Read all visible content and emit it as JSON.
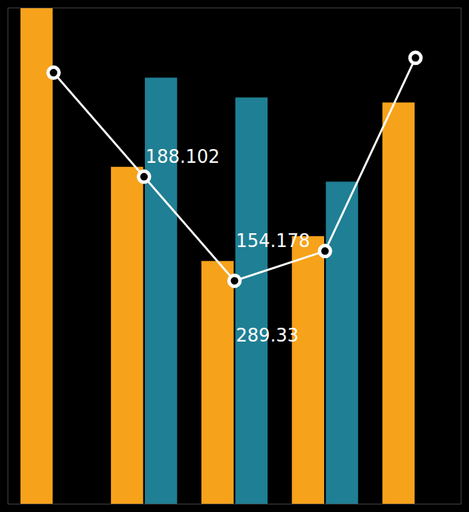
{
  "chart_data": {
    "type": "bar",
    "categories": [
      null,
      null,
      null,
      null,
      null
    ],
    "series": [
      {
        "type": "bar",
        "color": "#f7a21b",
        "values": [
          100,
          68,
          49,
          54,
          81
        ]
      },
      {
        "type": "bar",
        "color": "#1f7f94",
        "values": [
          null,
          86,
          82,
          65,
          null
        ]
      },
      {
        "type": "line",
        "color": "#ffffff",
        "marker": "circle",
        "values": [
          87,
          66,
          45,
          51,
          90
        ]
      }
    ],
    "ylim": [
      0,
      100
    ],
    "grid": false,
    "tick_labels": false,
    "annotations": [
      {
        "text": "188.102",
        "x": 1,
        "y": 70
      },
      {
        "text": "154.178",
        "x": 2,
        "y": 53
      },
      {
        "text": "289.33",
        "x": 2,
        "y": 34
      }
    ]
  }
}
